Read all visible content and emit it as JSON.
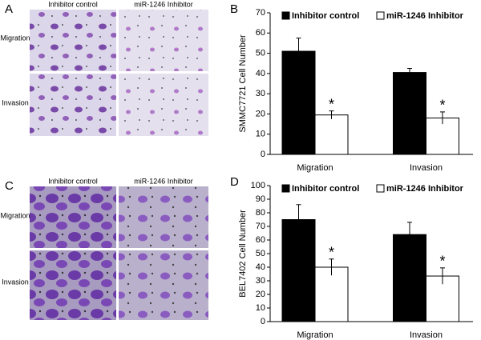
{
  "image_panels": [
    {
      "label": "A",
      "columns": [
        "Inhibitor control",
        "miR-1246 Inhibitor"
      ],
      "rows": [
        "Migration",
        "Invasion"
      ]
    },
    {
      "label": "C",
      "columns": [
        "Inhibitor control",
        "miR-1246 Inhibitor"
      ],
      "rows": [
        "Migration",
        "Invasion"
      ]
    }
  ],
  "chart_data": [
    {
      "type": "bar",
      "panel": "B",
      "ylabel": "SMMC7721 Cell Number",
      "categories": [
        "Migration",
        "Invasion"
      ],
      "ylim": [
        0,
        70
      ],
      "yticks": [
        0,
        10,
        20,
        30,
        40,
        50,
        60,
        70
      ],
      "series": [
        {
          "name": "Inhibitor control",
          "color": "#000000",
          "values": [
            51,
            40.5
          ],
          "errors": [
            6.5,
            2
          ]
        },
        {
          "name": "miR-1246 Inhibitor",
          "color": "#ffffff",
          "values": [
            19.5,
            18
          ],
          "errors": [
            2,
            3
          ],
          "markers": [
            "*",
            "*"
          ]
        }
      ]
    },
    {
      "type": "bar",
      "panel": "D",
      "ylabel": "BEL7402 Cell Number",
      "categories": [
        "Migration",
        "Invasion"
      ],
      "ylim": [
        0,
        100
      ],
      "yticks": [
        0,
        10,
        20,
        30,
        40,
        50,
        60,
        70,
        80,
        90,
        100
      ],
      "series": [
        {
          "name": "Inhibitor control",
          "color": "#000000",
          "values": [
            75,
            64
          ],
          "errors": [
            11,
            9
          ]
        },
        {
          "name": "miR-1246 Inhibitor",
          "color": "#ffffff",
          "values": [
            40,
            33.5
          ],
          "errors": [
            6,
            6
          ],
          "markers": [
            "*",
            "*"
          ]
        }
      ]
    }
  ]
}
